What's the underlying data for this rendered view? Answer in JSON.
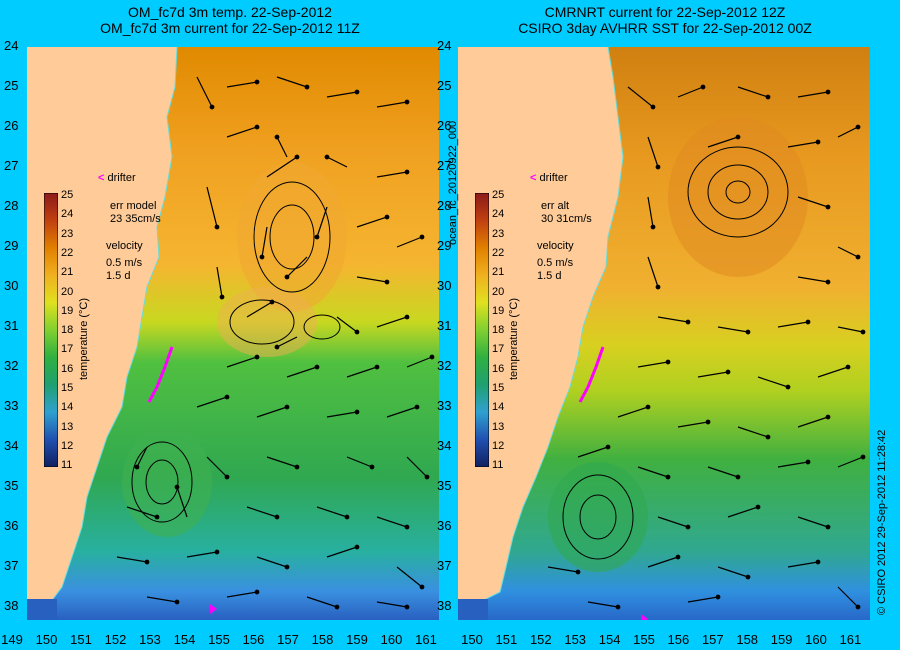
{
  "left_panel": {
    "title_line1": "OM_fc7d 3m temp. 22-Sep-2012",
    "title_line2": "OM_fc7d 3m current for 22-Sep-2012 11Z",
    "err_label": "err model",
    "err_value": "23 35cm/s",
    "velocity_label": "velocity",
    "velocity_scale": "0.5 m/s",
    "velocity_time": "1.5 d"
  },
  "right_panel": {
    "title_line1": "CMRNRT current for 22-Sep-2012 12Z",
    "title_line2": "CSIRO 3day AVHRR SST for 22-Sep-2012 00Z",
    "err_label": "err alt",
    "err_value": "30 31cm/s",
    "velocity_label": "velocity",
    "velocity_scale": "0.5 m/s",
    "velocity_time": "1.5 d"
  },
  "drifter_label": "drifter",
  "colorbar": {
    "title": "temperature (°C)",
    "ticks": [
      "25",
      "24",
      "23",
      "22",
      "21",
      "20",
      "19",
      "18",
      "17",
      "16",
      "15",
      "14",
      "13",
      "12",
      "11"
    ],
    "min": 11,
    "max": 25
  },
  "y_ticks": [
    "24",
    "25",
    "26",
    "27",
    "28",
    "29",
    "30",
    "31",
    "32",
    "33",
    "34",
    "35",
    "36",
    "37",
    "38"
  ],
  "x_ticks_left": [
    "149",
    "150",
    "151",
    "152",
    "153",
    "154",
    "155",
    "156",
    "157",
    "158",
    "159",
    "160",
    "161"
  ],
  "x_ticks_right": [
    "150",
    "151",
    "152",
    "153",
    "154",
    "155",
    "156",
    "157",
    "158",
    "159",
    "160",
    "161"
  ],
  "vertical_label": "ocean_fc_20120922_000",
  "credit": "© CSIRO 2012   29-Sep-2012 11:28:42",
  "colors": {
    "background": "#00ccff",
    "land": "#ffcc99",
    "drifter": "#ff00ff",
    "coastline": "#66dddd"
  }
}
